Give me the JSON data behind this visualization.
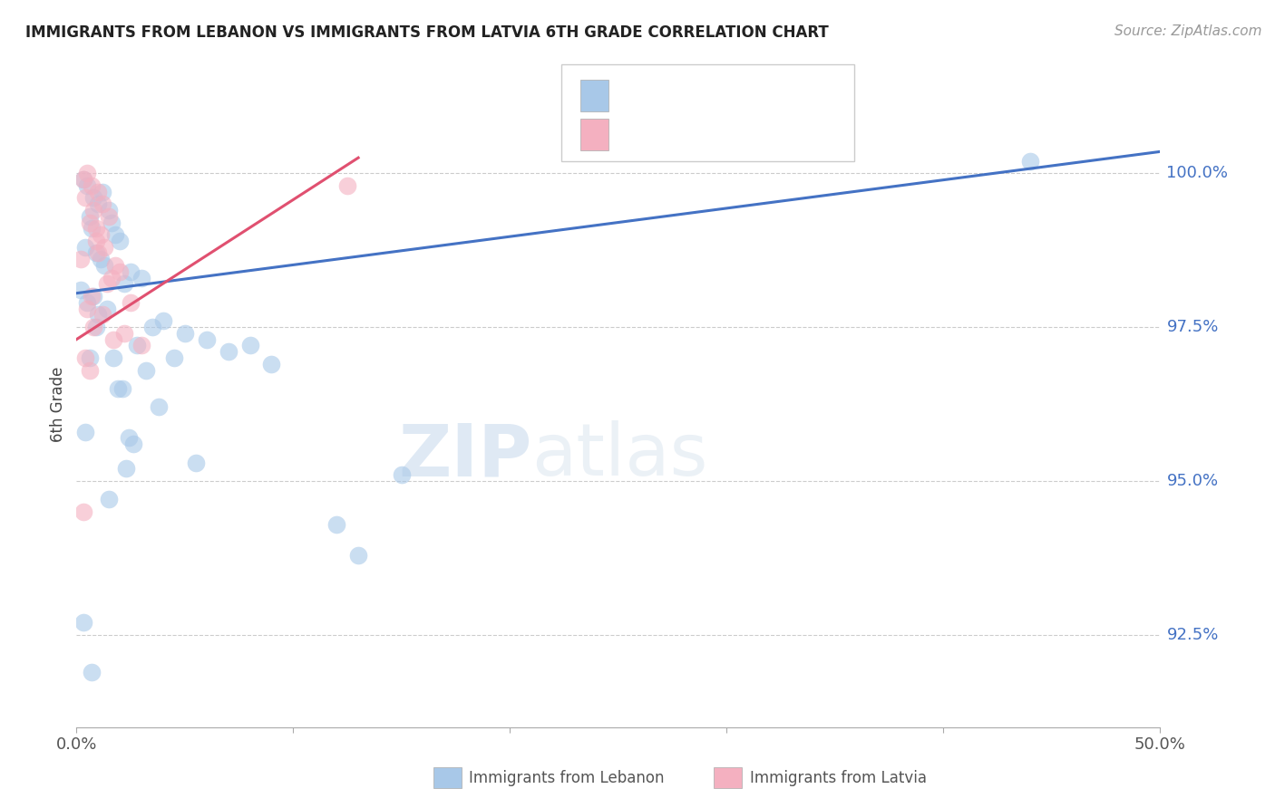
{
  "title": "IMMIGRANTS FROM LEBANON VS IMMIGRANTS FROM LATVIA 6TH GRADE CORRELATION CHART",
  "source": "Source: ZipAtlas.com",
  "ylabel_label": "6th Grade",
  "watermark_zip": "ZIP",
  "watermark_atlas": "atlas",
  "xlim": [
    0.0,
    50.0
  ],
  "ylim": [
    91.0,
    101.5
  ],
  "xticks": [
    0.0,
    10.0,
    20.0,
    30.0,
    40.0,
    50.0
  ],
  "xtick_labels": [
    "0.0%",
    "",
    "",
    "",
    "",
    "50.0%"
  ],
  "yticks": [
    92.5,
    95.0,
    97.5,
    100.0
  ],
  "ytick_labels": [
    "92.5%",
    "95.0%",
    "97.5%",
    "100.0%"
  ],
  "legend_blue_label": "Immigrants from Lebanon",
  "legend_pink_label": "Immigrants from Latvia",
  "blue_color": "#a8c8e8",
  "pink_color": "#f4b0c0",
  "blue_line_color": "#4472c4",
  "pink_line_color": "#e05070",
  "ytick_color": "#4472c4",
  "background_color": "#ffffff",
  "grid_color": "#cccccc",
  "blue_scatter_x": [
    0.5,
    0.8,
    1.0,
    1.2,
    1.5,
    0.3,
    0.6,
    0.4,
    0.7,
    1.8,
    2.0,
    1.1,
    1.3,
    0.9,
    2.5,
    3.0,
    1.6,
    2.2,
    0.2,
    0.5,
    1.4,
    0.8,
    1.0,
    3.5,
    4.0,
    5.0,
    6.0,
    3.2,
    4.5,
    7.0,
    8.0,
    2.8,
    9.0,
    2.1,
    1.7,
    0.6,
    1.9,
    0.4,
    2.4,
    3.8,
    2.6,
    12.0,
    13.0,
    5.5,
    15.0,
    2.3,
    1.5,
    0.7,
    44.0,
    0.3,
    0.9
  ],
  "blue_scatter_y": [
    99.8,
    99.6,
    99.5,
    99.7,
    99.4,
    99.9,
    99.3,
    98.8,
    99.1,
    99.0,
    98.9,
    98.6,
    98.5,
    98.7,
    98.4,
    98.3,
    99.2,
    98.2,
    98.1,
    97.9,
    97.8,
    98.0,
    97.7,
    97.5,
    97.6,
    97.4,
    97.3,
    96.8,
    97.0,
    97.1,
    97.2,
    97.2,
    96.9,
    96.5,
    97.0,
    97.0,
    96.5,
    95.8,
    95.7,
    96.2,
    95.6,
    94.3,
    93.8,
    95.3,
    95.1,
    95.2,
    94.7,
    91.9,
    100.2,
    92.7,
    97.5
  ],
  "pink_scatter_x": [
    0.3,
    0.5,
    0.7,
    1.0,
    1.2,
    0.4,
    0.8,
    1.5,
    0.6,
    0.9,
    1.1,
    1.3,
    0.2,
    1.8,
    2.0,
    1.6,
    1.4,
    0.7,
    2.5,
    1.0,
    0.5,
    1.2,
    0.8,
    2.2,
    1.7,
    3.0,
    0.4,
    0.6,
    12.5,
    0.3,
    0.9
  ],
  "pink_scatter_y": [
    99.9,
    100.0,
    99.8,
    99.7,
    99.5,
    99.6,
    99.4,
    99.3,
    99.2,
    99.1,
    99.0,
    98.8,
    98.6,
    98.5,
    98.4,
    98.3,
    98.2,
    98.0,
    97.9,
    98.7,
    97.8,
    97.7,
    97.5,
    97.4,
    97.3,
    97.2,
    97.0,
    96.8,
    99.8,
    94.5,
    98.9
  ],
  "blue_trend_x": [
    0.0,
    50.0
  ],
  "blue_trend_y": [
    98.05,
    100.35
  ],
  "pink_trend_x": [
    0.0,
    13.0
  ],
  "pink_trend_y": [
    97.3,
    100.25
  ]
}
